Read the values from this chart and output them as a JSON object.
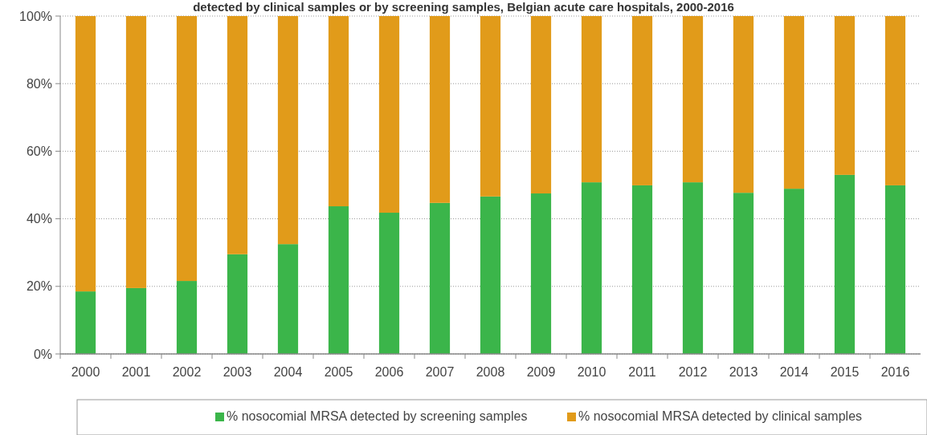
{
  "chart_data": {
    "type": "bar",
    "title": "detected by clinical samples or by screening samples, Belgian acute care hospitals, 2000-2016",
    "categories": [
      "2000",
      "2001",
      "2002",
      "2003",
      "2004",
      "2005",
      "2006",
      "2007",
      "2008",
      "2009",
      "2010",
      "2011",
      "2012",
      "2013",
      "2014",
      "2015",
      "2016"
    ],
    "stacked": true,
    "series": [
      {
        "name": "% nosocomial MRSA detected by screening samples",
        "color": "#3bb54a",
        "values": [
          18.5,
          19.5,
          21.6,
          29.5,
          32.5,
          43.7,
          41.8,
          44.7,
          46.6,
          47.5,
          50.8,
          49.9,
          50.8,
          47.7,
          48.9,
          53,
          49.9
        ]
      },
      {
        "name": "% nosocomial MRSA detected by clinical samples",
        "color": "#e19b1a",
        "values": [
          81.5,
          80.5,
          78.4,
          70.5,
          67.5,
          56.3,
          58.2,
          55.3,
          53.4,
          52.5,
          49.2,
          50.1,
          49.2,
          52.3,
          51.1,
          47,
          50.1
        ]
      }
    ],
    "ylim": [
      0,
      100
    ],
    "yticks": [
      {
        "value": 0,
        "label": "0%"
      },
      {
        "value": 20,
        "label": "20%"
      },
      {
        "value": 40,
        "label": "40%"
      },
      {
        "value": 60,
        "label": "60%"
      },
      {
        "value": 80,
        "label": "80%"
      },
      {
        "value": 100,
        "label": "100%"
      }
    ],
    "grid": "y",
    "legend": "bottom"
  }
}
